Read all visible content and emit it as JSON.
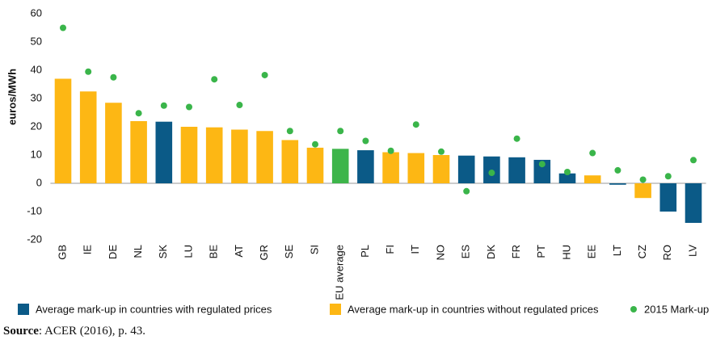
{
  "chart_data": {
    "type": "bar",
    "ylabel": "euros/MWh",
    "categories": [
      "GB",
      "IE",
      "DE",
      "NL",
      "SK",
      "LU",
      "BE",
      "AT",
      "GR",
      "SE",
      "SI",
      "EU average",
      "PL",
      "FI",
      "IT",
      "NO",
      "ES",
      "DK",
      "FR",
      "PT",
      "HU",
      "EE",
      "LT",
      "CZ",
      "RO",
      "LV"
    ],
    "values": [
      37,
      32.5,
      28.5,
      22,
      21.8,
      20,
      19.8,
      19,
      18.5,
      15.3,
      12.6,
      12.2,
      11.7,
      11,
      10.7,
      10,
      9.8,
      9.5,
      9.2,
      8.3,
      3.5,
      2.8,
      -0.5,
      -5.2,
      -10,
      -14
    ],
    "bar_colors": [
      "#fdb714",
      "#fdb714",
      "#fdb714",
      "#fdb714",
      "#0b5a87",
      "#fdb714",
      "#fdb714",
      "#fdb714",
      "#fdb714",
      "#fdb714",
      "#fdb714",
      "#3db54a",
      "#0b5a87",
      "#fdb714",
      "#fdb714",
      "#fdb714",
      "#0b5a87",
      "#0b5a87",
      "#0b5a87",
      "#0b5a87",
      "#0b5a87",
      "#fdb714",
      "#0b5a87",
      "#fdb714",
      "#0b5a87",
      "#0b5a87"
    ],
    "dots": {
      "name": "2015 Mark-up",
      "color": "#3ab54a",
      "values": [
        55,
        39.5,
        37.5,
        24.8,
        27.5,
        27,
        36.8,
        27.7,
        38.3,
        18.5,
        13.8,
        18.5,
        15,
        11.5,
        20.8,
        11.2,
        -2.8,
        3.7,
        15.8,
        6.8,
        4,
        10.7,
        4.6,
        1.3,
        2.5,
        8.2
      ]
    },
    "legend": [
      {
        "name": "Average mark-up in countries with regulated prices",
        "color": "#0b5a87"
      },
      {
        "name": "Average mark-up in countries without regulated prices",
        "color": "#fdb714"
      }
    ],
    "ylim": [
      -20,
      60
    ],
    "yticks": [
      -20,
      -10,
      0,
      10,
      20,
      30,
      40,
      50,
      60
    ],
    "source_label": "Source",
    "source_text": ": ACER (2016), p. 43."
  }
}
